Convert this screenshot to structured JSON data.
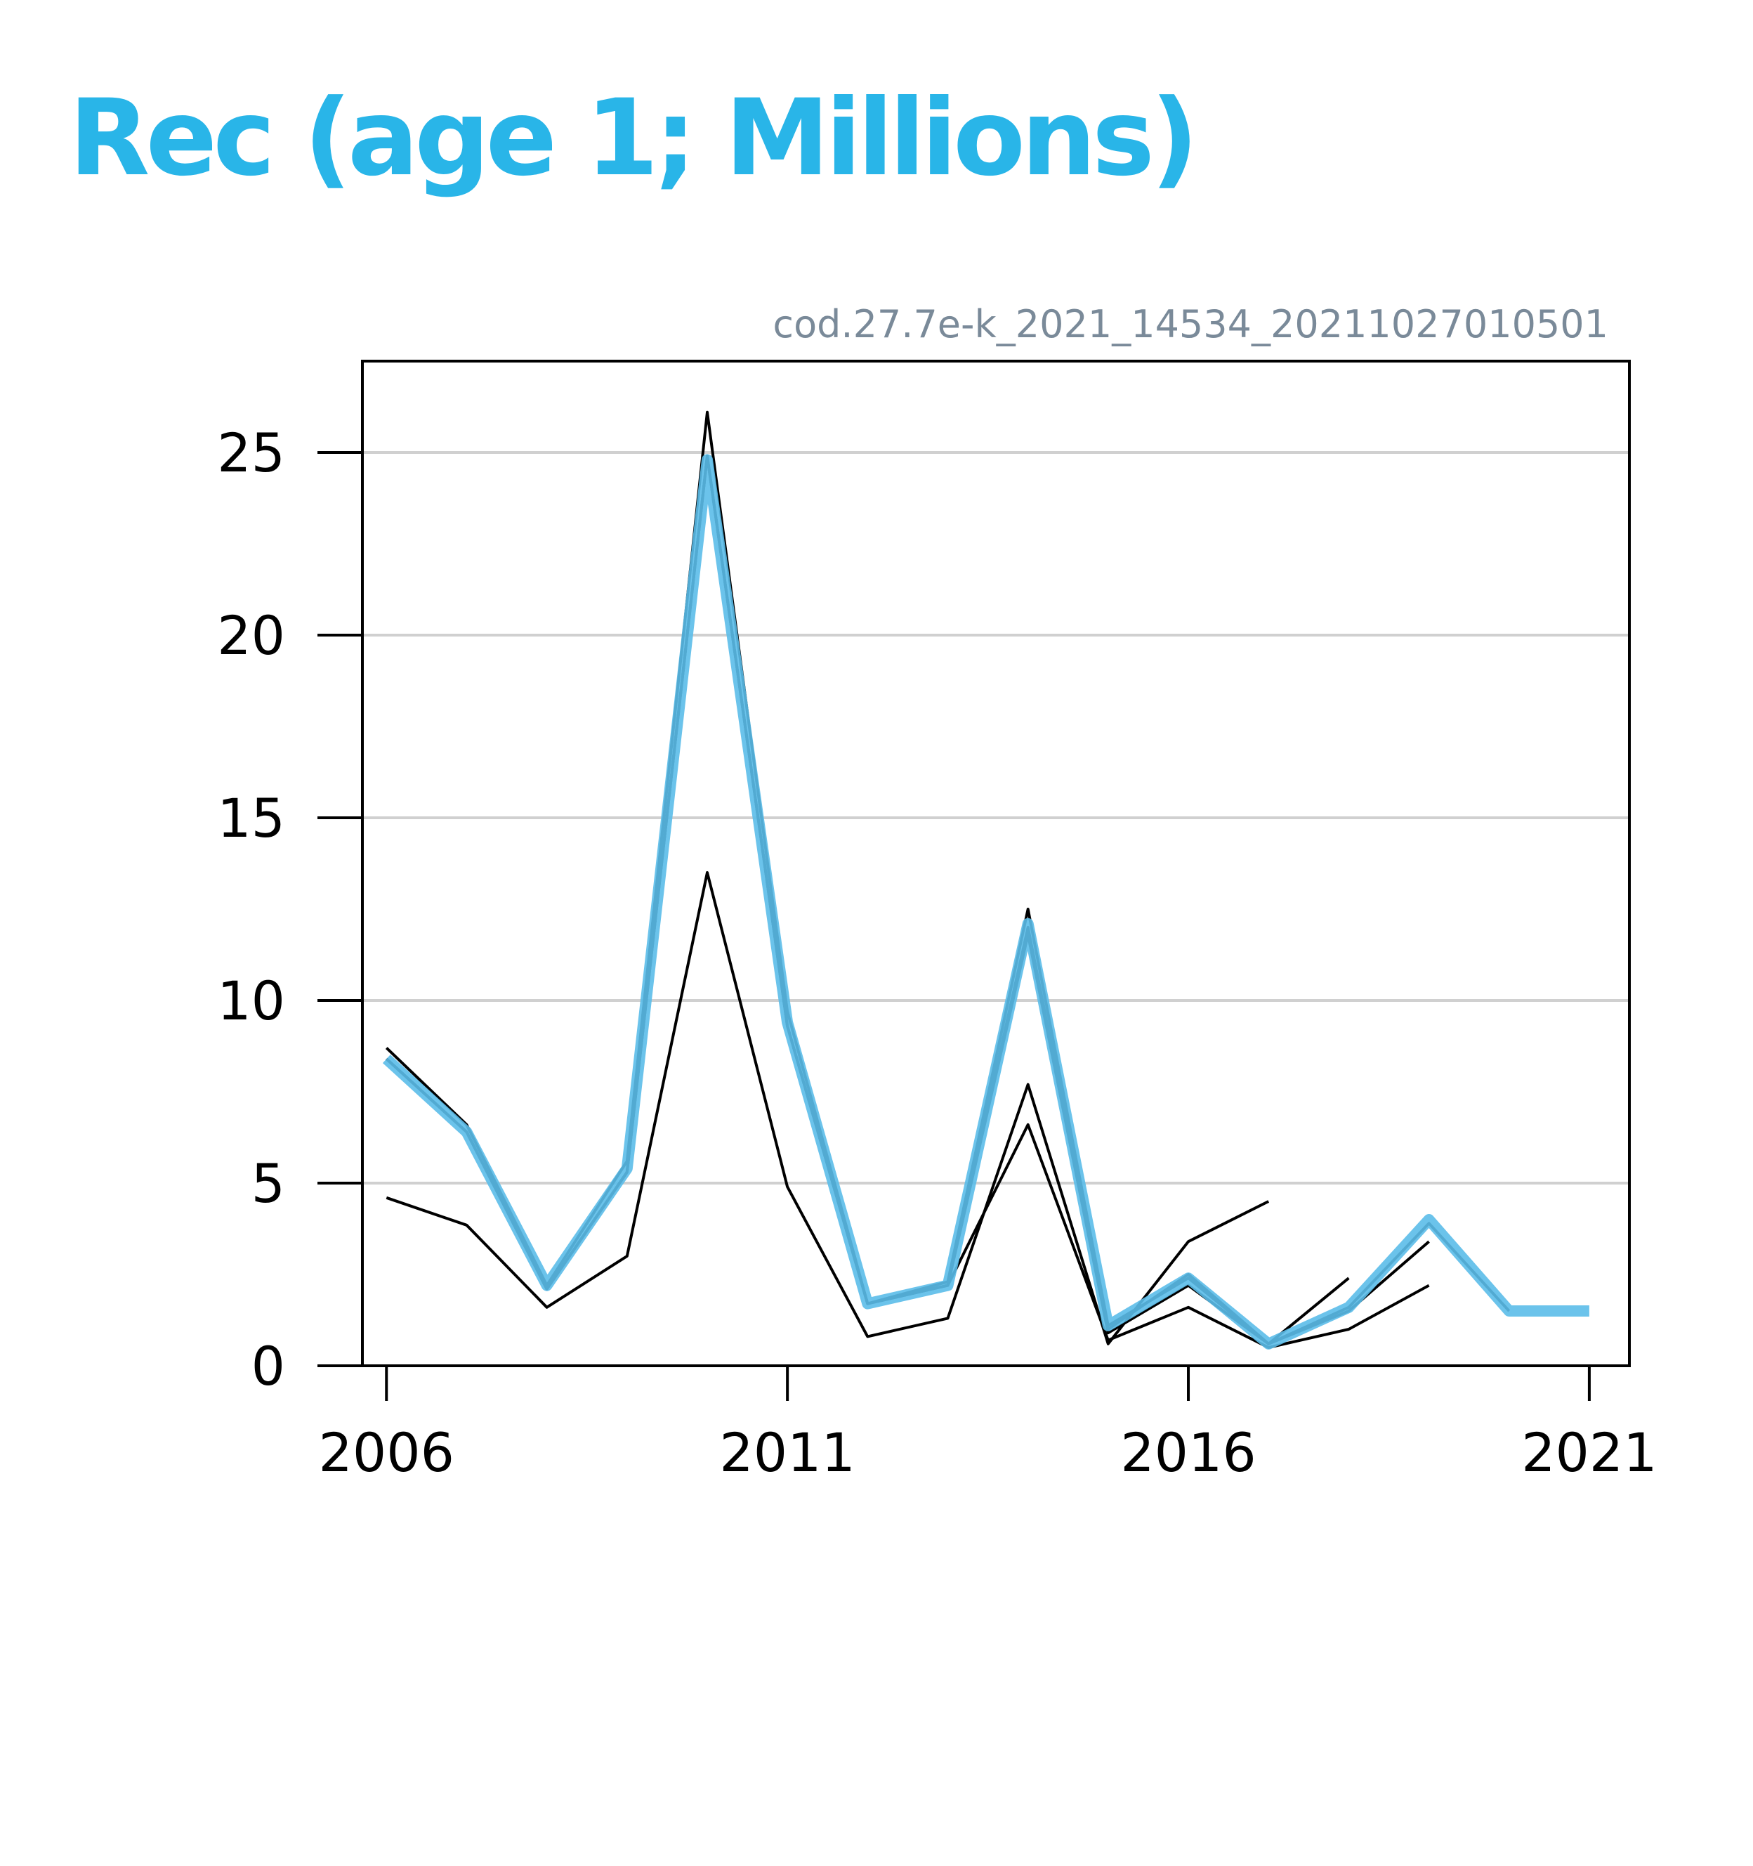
{
  "title": "Rec (age 1; Millions)",
  "chart_data": {
    "type": "line",
    "subtitle": "cod.27.7e-k_2021_14534_20211027010501",
    "xlim": [
      2005.7,
      2021.5
    ],
    "ylim": [
      0,
      27.5
    ],
    "x_ticks": [
      2006,
      2011,
      2016,
      2021
    ],
    "y_ticks": [
      0,
      5,
      10,
      15,
      20,
      25
    ],
    "grid": "horizontal",
    "highlight_color": "#5bbde9",
    "line_color": "#000000",
    "series": [
      {
        "x": [
          2006,
          2007,
          2008,
          2009,
          2010,
          2011,
          2012,
          2013,
          2014,
          2015,
          2016,
          2017
        ],
        "values": [
          4.6,
          3.85,
          1.6,
          3.0,
          13.5,
          4.9,
          0.8,
          1.3,
          7.7,
          0.6,
          3.4,
          4.5
        ]
      },
      {
        "x": [
          2006,
          2007,
          2008,
          2009,
          2010,
          2011,
          2012,
          2013,
          2014,
          2015,
          2016,
          2017,
          2018
        ],
        "values": [
          8.7,
          6.6,
          2.2,
          5.6,
          26.1,
          9.7,
          1.7,
          2.3,
          12.5,
          1.1,
          2.4,
          0.6,
          2.4
        ]
      },
      {
        "x": [
          2006,
          2007,
          2008,
          2009,
          2010,
          2011,
          2012,
          2013,
          2014,
          2015,
          2016,
          2017,
          2018,
          2019
        ],
        "values": [
          8.4,
          6.4,
          2.1,
          5.3,
          24.9,
          9.3,
          1.7,
          2.2,
          11.8,
          0.9,
          2.2,
          0.6,
          1.5,
          3.4
        ]
      },
      {
        "x": [
          2006,
          2007,
          2008,
          2009,
          2010,
          2011,
          2012,
          2013,
          2014,
          2015,
          2016,
          2017,
          2018,
          2019
        ],
        "values": [
          8.4,
          6.4,
          2.1,
          5.3,
          24.9,
          9.3,
          1.7,
          2.2,
          6.6,
          0.7,
          1.6,
          0.5,
          1.0,
          2.2
        ]
      },
      {
        "x": [
          2006,
          2007,
          2008,
          2009,
          2010,
          2011,
          2012,
          2013,
          2014,
          2015,
          2016,
          2017,
          2018,
          2019,
          2020
        ],
        "values": [
          8.4,
          6.4,
          2.1,
          5.3,
          24.9,
          9.3,
          1.7,
          2.2,
          12.0,
          1.0,
          2.5,
          0.6,
          1.6,
          3.9,
          1.5
        ]
      },
      {
        "x": [
          2006,
          2007,
          2008,
          2009,
          2010,
          2011,
          2012,
          2013,
          2014,
          2015,
          2016,
          2017,
          2018,
          2019,
          2020,
          2021
        ],
        "values": [
          8.4,
          6.4,
          2.2,
          5.4,
          24.8,
          9.4,
          1.7,
          2.2,
          12.1,
          1.1,
          2.4,
          0.6,
          1.6,
          4.0,
          1.5,
          1.5
        ],
        "highlight": true
      }
    ]
  }
}
